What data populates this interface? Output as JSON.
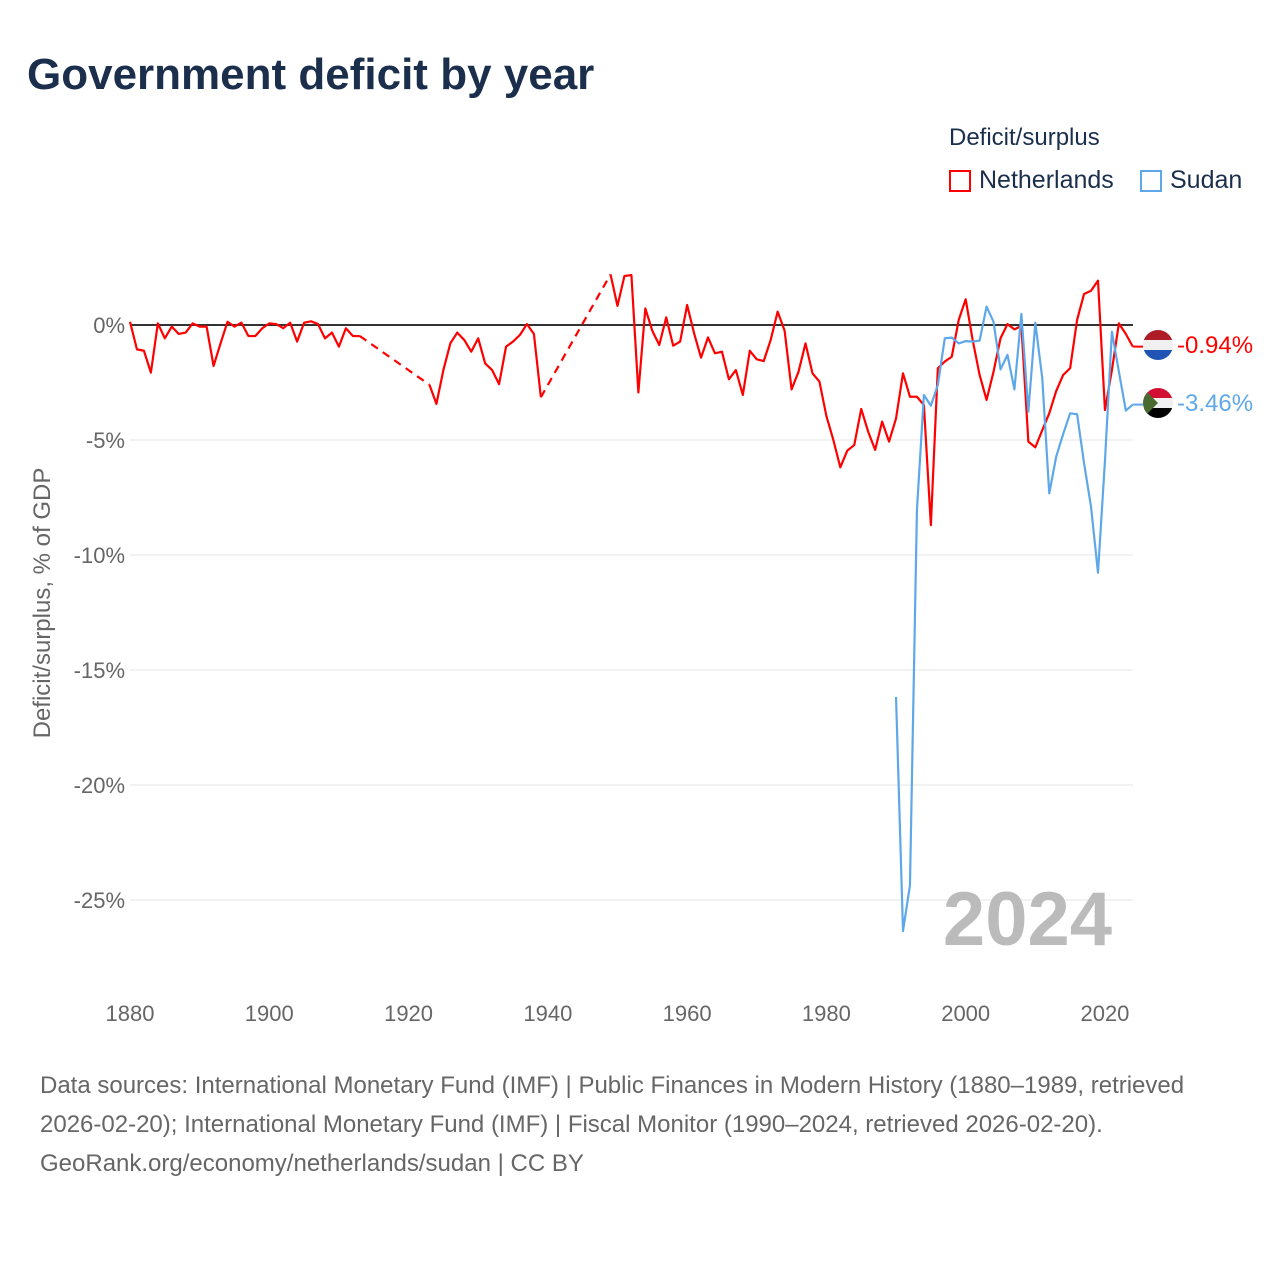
{
  "title": "Government deficit by year",
  "legend": {
    "title": "Deficit/surplus",
    "items": [
      {
        "label": "Netherlands",
        "color": "#ff0000"
      },
      {
        "label": "Sudan",
        "color": "#5ea8ea"
      }
    ]
  },
  "footer": {
    "sources": "Data sources: International Monetary Fund (IMF) | Public Finances in Modern History (1880–1989, retrieved 2026-02-20); International Monetary Fund (IMF) | Fiscal Monitor (1990–2024, retrieved 2026-02-20).",
    "attribution": "GeoRank.org/economy/netherlands/sudan | CC BY"
  },
  "chart_data": {
    "type": "line",
    "title": "Government deficit by year",
    "xlabel": "",
    "ylabel": "Deficit/surplus, % of GDP",
    "xlim": [
      1880,
      2024
    ],
    "ylim": [
      -27.5,
      2.5
    ],
    "x_ticks": [
      1880,
      1900,
      1920,
      1940,
      1960,
      1980,
      2000,
      2020
    ],
    "x_tick_labels": [
      "1880",
      "1900",
      "1920",
      "1940",
      "1960",
      "1980",
      "2000",
      "2020"
    ],
    "y_ticks": [
      0,
      -5,
      -10,
      -15,
      -20,
      -25
    ],
    "y_tick_labels": [
      "0%",
      "-5%",
      "-10%",
      "-15%",
      "-20%",
      "-25%"
    ],
    "year_watermark": "2024",
    "grid": true,
    "legend_placement": "top-right",
    "series": [
      {
        "name": "Netherlands",
        "color": "#ff0000",
        "end_label": "-0.94%",
        "start_year": 1880,
        "values": [
          0.14,
          -1.06,
          -1.12,
          -2.07,
          0.07,
          -0.58,
          -0.07,
          -0.39,
          -0.33,
          0.07,
          -0.07,
          -0.07,
          -1.78,
          -0.8,
          0.14,
          -0.07,
          0.1,
          -0.48,
          -0.48,
          -0.14,
          0.07,
          0.04,
          -0.14,
          0.1,
          -0.72,
          0.1,
          0.16,
          0.04,
          -0.58,
          -0.33,
          -0.94,
          -0.14,
          -0.48,
          -0.48,
          null,
          null,
          null,
          null,
          null,
          null,
          null,
          null,
          null,
          -2.6,
          -3.43,
          -1.96,
          -0.8,
          -0.33,
          -0.65,
          -1.16,
          -0.58,
          -1.67,
          -1.96,
          -2.57,
          -0.94,
          -0.72,
          -0.43,
          0.04,
          -0.39,
          -3.14,
          null,
          null,
          null,
          null,
          null,
          null,
          null,
          null,
          null,
          2.2,
          0.83,
          2.13,
          2.17,
          -2.93,
          0.72,
          -0.25,
          -0.87,
          0.33,
          -0.9,
          -0.72,
          0.87,
          -0.36,
          -1.42,
          -0.54,
          -1.23,
          -1.16,
          -2.36,
          -1.96,
          -3.04,
          -1.12,
          -1.49,
          -1.57,
          -0.65,
          0.58,
          -0.25,
          -2.8,
          -2.03,
          -0.8,
          -2.1,
          -2.46,
          -3.96,
          -5.0,
          -6.19,
          -5.46,
          -5.22,
          -3.65,
          -4.64,
          -5.43,
          -4.2,
          -5.07,
          -4.06,
          -2.1,
          -3.12,
          -3.12,
          -3.48,
          -8.7,
          -1.88,
          -1.59,
          -1.38,
          0.22,
          1.12,
          -0.65,
          -2.17,
          -3.26,
          -2.03,
          -0.58,
          0.04,
          -0.19,
          -0.04,
          -5.07,
          -5.32,
          -4.57,
          -3.84,
          -2.87,
          -2.17,
          -1.88,
          0.22,
          1.35,
          1.49,
          1.93,
          -3.7,
          -1.96,
          0.07,
          -0.39,
          -0.94
        ]
      },
      {
        "name": "Sudan",
        "color": "#5ea8ea",
        "end_label": "-3.46%",
        "start_year": 1990,
        "values": [
          -16.17,
          -26.35,
          -24.35,
          -8.04,
          -3.04,
          -3.51,
          -2.61,
          -0.58,
          -0.55,
          -0.8,
          -0.7,
          -0.72,
          -0.68,
          0.8,
          0.14,
          -1.93,
          -1.3,
          -2.8,
          0.48,
          -3.77,
          0.1,
          -2.32,
          -7.32,
          -5.72,
          -4.74,
          -3.84,
          -3.88,
          -6.01,
          -7.9,
          -10.77,
          -5.9,
          -0.29,
          -2.03,
          -3.72,
          -3.46
        ]
      }
    ]
  }
}
